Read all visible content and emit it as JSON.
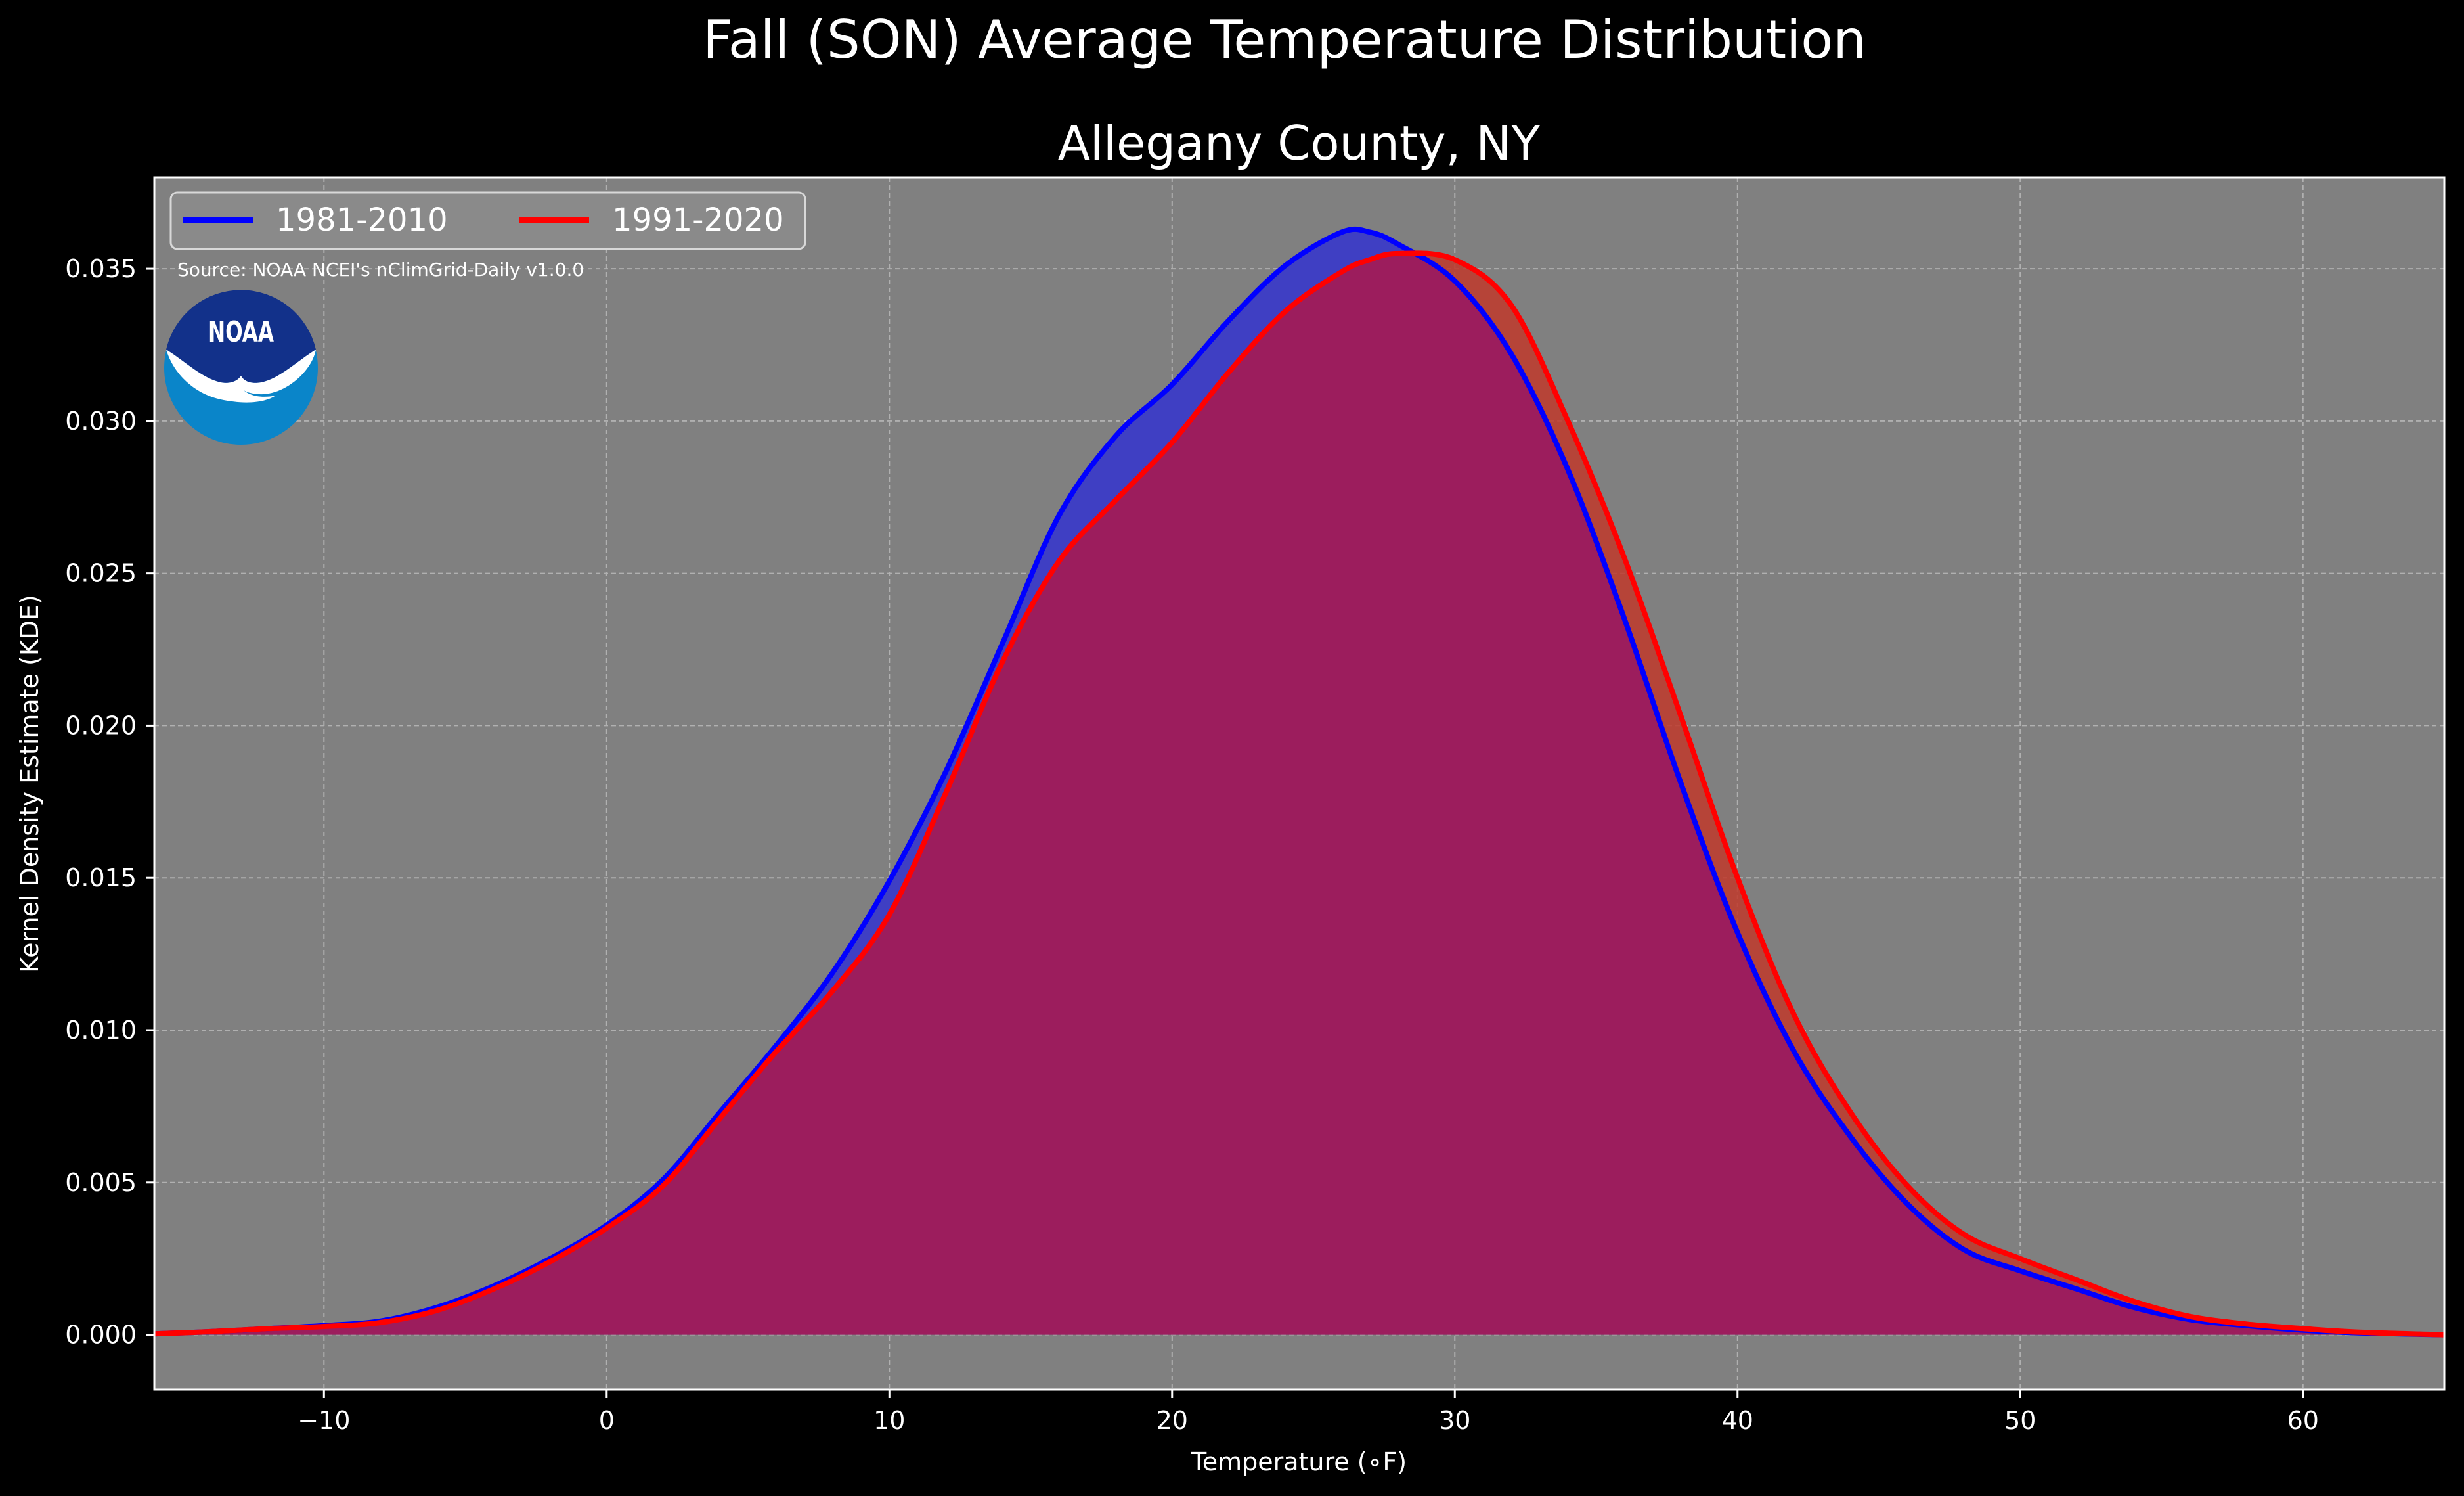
{
  "chart_data": {
    "type": "area",
    "title": "Fall (SON) Average Temperature Distribution",
    "subtitle": "Allegany County, NY",
    "xlabel": "Temperature (∘F)",
    "ylabel": "Kernel Density Estimate (KDE)",
    "xlim": [
      -16,
      65
    ],
    "ylim": [
      -0.0018,
      0.038
    ],
    "xticks": [
      -10,
      0,
      10,
      20,
      30,
      40,
      50,
      60
    ],
    "xtick_labels": [
      "−10",
      "0",
      "10",
      "20",
      "30",
      "40",
      "50",
      "60"
    ],
    "yticks": [
      0.0,
      0.005,
      0.01,
      0.015,
      0.02,
      0.025,
      0.03,
      0.035
    ],
    "ytick_labels": [
      "0.000",
      "0.005",
      "0.010",
      "0.015",
      "0.020",
      "0.025",
      "0.030",
      "0.035"
    ],
    "grid": true,
    "legend_placement": "top-left",
    "annotation": "Source: NOAA NCEI's nClimGrid-Daily v1.0.0",
    "logo_text": "NOAA",
    "colors": {
      "background": "#000000",
      "axes_face": "#808080",
      "series_1": "#0000ff",
      "series_1_fill": "#3f3fc3",
      "series_2": "#ff0000",
      "overlap_fill": "#9c1d5d",
      "noaa_dark": "#12318a",
      "noaa_light": "#0a85c9"
    },
    "x": [
      -16,
      -14,
      -12,
      -10,
      -8,
      -6,
      -4,
      -2,
      0,
      2,
      4,
      6,
      8,
      10,
      12,
      14,
      16,
      18,
      20,
      22,
      24,
      26,
      27,
      28,
      30,
      32,
      34,
      36,
      38,
      40,
      42,
      44,
      46,
      48,
      50,
      52,
      54,
      56,
      58,
      60,
      62,
      65
    ],
    "series": [
      {
        "name": "1981-2010",
        "values": [
          3e-05,
          0.0001,
          0.0002,
          0.0003,
          0.00045,
          0.0009,
          0.0016,
          0.0025,
          0.0036,
          0.0051,
          0.0073,
          0.0095,
          0.0119,
          0.0149,
          0.0185,
          0.0227,
          0.0269,
          0.0295,
          0.0312,
          0.0333,
          0.0351,
          0.0362,
          0.0362,
          0.0358,
          0.0346,
          0.0322,
          0.0284,
          0.0235,
          0.0181,
          0.0132,
          0.0093,
          0.0065,
          0.0043,
          0.0028,
          0.0021,
          0.0015,
          0.0009,
          0.0005,
          0.0003,
          0.00015,
          6e-05,
          0.0
        ]
      },
      {
        "name": "1991-2020",
        "values": [
          3e-05,
          0.0001,
          0.0002,
          0.00027,
          0.0004,
          0.0008,
          0.0015,
          0.0024,
          0.0035,
          0.0049,
          0.0071,
          0.0093,
          0.0113,
          0.0138,
          0.0178,
          0.0221,
          0.0254,
          0.0274,
          0.0293,
          0.0316,
          0.0336,
          0.0349,
          0.0353,
          0.0355,
          0.0353,
          0.0338,
          0.03,
          0.0255,
          0.0203,
          0.015,
          0.0105,
          0.0073,
          0.0049,
          0.0033,
          0.0025,
          0.0018,
          0.0011,
          0.0006,
          0.00035,
          0.0002,
          8e-05,
          0.0
        ]
      }
    ]
  }
}
